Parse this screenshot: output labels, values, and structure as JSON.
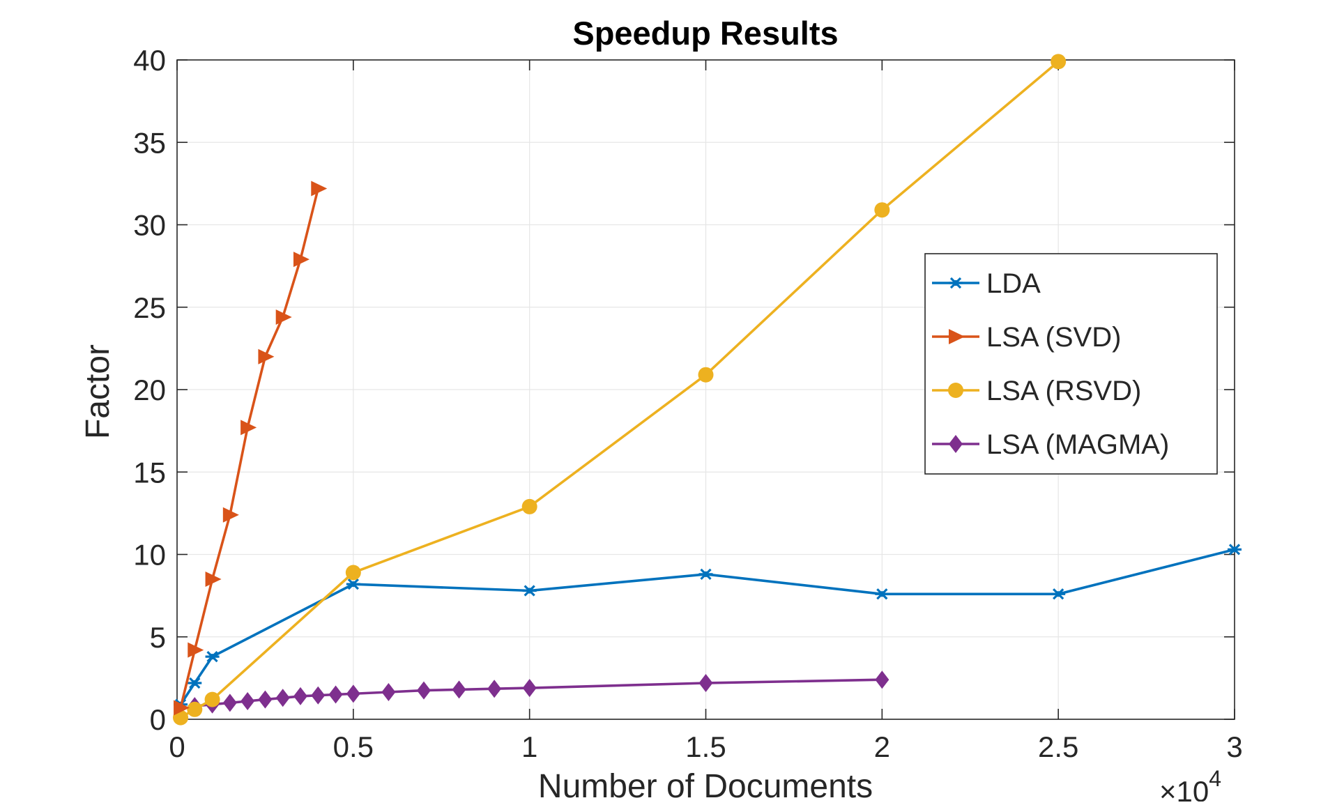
{
  "chart_data": {
    "type": "line",
    "title": "Speedup Results",
    "xlabel": "Number of Documents",
    "ylabel": "Factor",
    "x_exponent_base": "×10",
    "x_exponent_power": "4",
    "xlim": [
      0,
      30000
    ],
    "ylim": [
      0,
      40
    ],
    "xticks": [
      0,
      5000,
      10000,
      15000,
      20000,
      25000,
      30000
    ],
    "xtick_labels": [
      "0",
      "0.5",
      "1",
      "1.5",
      "2",
      "2.5",
      "3"
    ],
    "yticks": [
      0,
      5,
      10,
      15,
      20,
      25,
      30,
      35,
      40
    ],
    "ytick_labels": [
      "0",
      "5",
      "10",
      "15",
      "20",
      "25",
      "30",
      "35",
      "40"
    ],
    "grid": true,
    "legend_position": "right, upper-middle",
    "series": [
      {
        "name": "LDA",
        "color": "#0072BD",
        "marker": "asterisk",
        "x": [
          100,
          500,
          1000,
          5000,
          10000,
          15000,
          20000,
          25000,
          30000
        ],
        "y": [
          0.9,
          2.2,
          3.8,
          8.2,
          7.8,
          8.8,
          7.6,
          7.6,
          10.3
        ]
      },
      {
        "name": "LSA (SVD)",
        "color": "#D95319",
        "marker": "triangle-right",
        "x": [
          100,
          500,
          1000,
          1500,
          2000,
          2500,
          3000,
          3500,
          4000
        ],
        "y": [
          0.7,
          4.2,
          8.5,
          12.4,
          17.7,
          22.0,
          24.4,
          27.9,
          32.2
        ]
      },
      {
        "name": "LSA (RSVD)",
        "color": "#EDB120",
        "marker": "circle",
        "x": [
          100,
          500,
          1000,
          5000,
          10000,
          15000,
          20000,
          25000
        ],
        "y": [
          0.1,
          0.6,
          1.2,
          8.9,
          12.9,
          20.9,
          30.9,
          39.9
        ]
      },
      {
        "name": "LSA (MAGMA)",
        "color": "#7E2F8E",
        "marker": "diamond",
        "x": [
          500,
          1000,
          1500,
          2000,
          2500,
          3000,
          3500,
          4000,
          4500,
          5000,
          6000,
          7000,
          8000,
          9000,
          10000,
          15000,
          20000
        ],
        "y": [
          0.8,
          0.9,
          1.0,
          1.1,
          1.2,
          1.3,
          1.4,
          1.45,
          1.5,
          1.55,
          1.65,
          1.75,
          1.8,
          1.85,
          1.9,
          2.2,
          2.4
        ]
      }
    ]
  }
}
